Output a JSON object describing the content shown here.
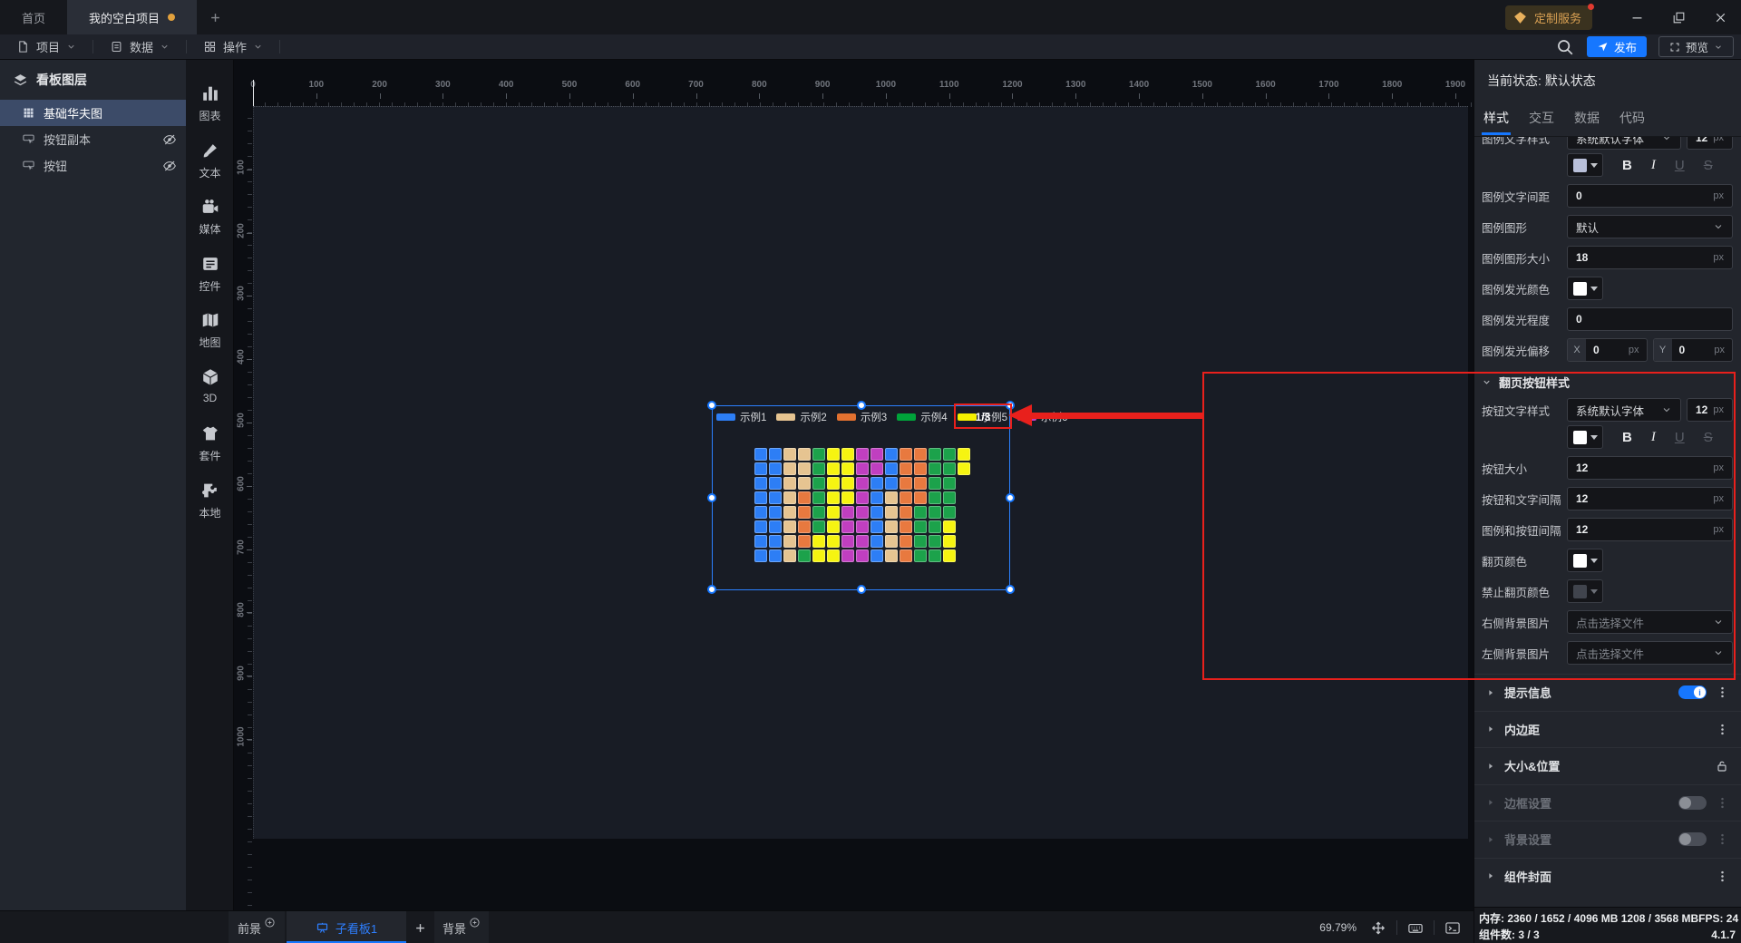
{
  "titlebar": {
    "tabs": [
      {
        "label": "首页",
        "active": false,
        "modified": false
      },
      {
        "label": "我的空白项目",
        "active": true,
        "modified": true
      }
    ],
    "badge": {
      "label": "定制服务",
      "icon": "diamond-icon",
      "notification": true
    }
  },
  "menubar": {
    "menus": [
      {
        "label": "项目",
        "icon": "file-icon"
      },
      {
        "label": "数据",
        "icon": "database-icon"
      },
      {
        "label": "操作",
        "icon": "grid-icon"
      }
    ],
    "publish_label": "发布",
    "preview_label": "预览"
  },
  "layers_panel": {
    "title": "看板图层",
    "items": [
      {
        "label": "基础华夫图",
        "icon": "waffle-icon",
        "selected": true,
        "hidden": false
      },
      {
        "label": "按钮副本",
        "icon": "button-icon",
        "selected": false,
        "hidden": true
      },
      {
        "label": "按钮",
        "icon": "button-icon",
        "selected": false,
        "hidden": true
      }
    ]
  },
  "dock": {
    "items": [
      {
        "label": "图表",
        "icon": "bar-chart-icon"
      },
      {
        "label": "文本",
        "icon": "text-brush-icon"
      },
      {
        "label": "媒体",
        "icon": "media-icon"
      },
      {
        "label": "控件",
        "icon": "widget-icon"
      },
      {
        "label": "地图",
        "icon": "map-icon"
      },
      {
        "label": "3D",
        "icon": "cube-icon"
      },
      {
        "label": "套件",
        "icon": "kit-icon"
      },
      {
        "label": "本地",
        "icon": "puzzle-icon"
      }
    ]
  },
  "canvas": {
    "h_ruler_labels": [
      "0",
      "100",
      "200",
      "300",
      "400",
      "500",
      "600",
      "700",
      "800",
      "900",
      "1000",
      "1100",
      "1200",
      "1300",
      "1400",
      "1500",
      "1600",
      "1700",
      "1800",
      "1900"
    ],
    "v_ruler_labels": [
      "100",
      "200",
      "300",
      "400",
      "500",
      "600",
      "700",
      "800",
      "900",
      "1000"
    ],
    "chart": {
      "legend": [
        {
          "label": "示例1",
          "color": "#2d7ef5"
        },
        {
          "label": "示例2",
          "color": "#e6c491"
        },
        {
          "label": "示例3",
          "color": "#e27130"
        },
        {
          "label": "示例4",
          "color": "#00a33a"
        },
        {
          "label": "示例5",
          "color": "#f4f000"
        },
        {
          "label": "示例6",
          "color": "#c03fc0"
        }
      ],
      "pagination": {
        "current_page": "1/3"
      },
      "waffle": {
        "palette": {
          "B": "#2d7ef5",
          "T": "#e6c491",
          "O": "#e8793f",
          "G": "#1ca24b",
          "Y": "#f6f411",
          "M": "#c03fc0"
        },
        "rows": [
          "BBTTGYYMMBOOGGY",
          "BBTTGYYMMBOOGGY",
          "BBTTGYYMBBOOGG",
          "BBTOGYYMBTOOGG",
          "BBTOGYMMBTOGGG",
          "BBTOGYMMBTOGGY",
          "BBTOYYMMBTOGGY",
          "BBTGYYMMBTOGGY"
        ]
      }
    }
  },
  "inspector": {
    "state_label": "当前状态: 默认状态",
    "tabs": [
      {
        "label": "样式",
        "active": true
      },
      {
        "label": "交互",
        "active": false
      },
      {
        "label": "数据",
        "active": false
      },
      {
        "label": "代码",
        "active": false
      }
    ],
    "format_buttons": [
      {
        "label": "B",
        "style": "bold",
        "disabled": false
      },
      {
        "label": "I",
        "style": "italic",
        "disabled": false
      },
      {
        "label": "U",
        "style": "underline",
        "disabled": true
      },
      {
        "label": "S",
        "style": "strike",
        "disabled": true
      }
    ],
    "style_pane": {
      "rows": [
        {
          "type": "font",
          "label": "图例文字样式",
          "font_value": "系统默认字体",
          "size_value": "12",
          "suffix": "px",
          "swatch_color": "#b9c0da",
          "clipped": true
        },
        {
          "type": "input",
          "label": "图例文字间距",
          "value": "0",
          "suffix": "px"
        },
        {
          "type": "select",
          "label": "图例图形",
          "value": "默认"
        },
        {
          "type": "input",
          "label": "图例图形大小",
          "value": "18",
          "suffix": "px"
        },
        {
          "type": "color",
          "label": "图例发光颜色",
          "swatch_color": "#ffffff"
        },
        {
          "type": "input",
          "label": "图例发光程度",
          "value": "0",
          "suffix": ""
        },
        {
          "type": "xy",
          "label": "图例发光偏移",
          "x_label": "X",
          "x_value": "0",
          "y_label": "Y",
          "y_value": "0",
          "suffix": "px"
        }
      ],
      "pager_section": {
        "title": "翻页按钮样式",
        "rows": [
          {
            "type": "font",
            "label": "按钮文字样式",
            "font_value": "系统默认字体",
            "size_value": "12",
            "suffix": "px",
            "swatch_color": "#ffffff"
          },
          {
            "type": "input",
            "label": "按钮大小",
            "value": "12",
            "suffix": "px"
          },
          {
            "type": "input",
            "label": "按钮和文字间隔",
            "value": "12",
            "suffix": "px"
          },
          {
            "type": "input",
            "label": "图例和按钮间隔",
            "value": "12",
            "suffix": "px"
          },
          {
            "type": "color",
            "label": "翻页颜色",
            "swatch_color": "#ffffff"
          },
          {
            "type": "color",
            "label": "禁止翻页颜色",
            "swatch_color": "#40444d",
            "disabled": true
          },
          {
            "type": "select",
            "label": "右侧背景图片",
            "value": "点击选择文件",
            "placeholder": true
          },
          {
            "type": "select",
            "label": "左侧背景图片",
            "value": "点击选择文件",
            "placeholder": true
          }
        ]
      },
      "accordions": [
        {
          "label": "提示信息",
          "toggle": "on",
          "menu": true,
          "disabled": false
        },
        {
          "label": "内边距",
          "toggle": null,
          "menu": true,
          "disabled": false
        },
        {
          "label": "大小&位置",
          "toggle": null,
          "menu": false,
          "lock": true,
          "disabled": false
        },
        {
          "label": "边框设置",
          "toggle": "off",
          "menu": true,
          "disabled": true
        },
        {
          "label": "背景设置",
          "toggle": "off",
          "menu": true,
          "disabled": true
        },
        {
          "label": "组件封面",
          "toggle": null,
          "menu": true,
          "disabled": false
        }
      ]
    }
  },
  "bottombar": {
    "foreground_label": "前景",
    "active_board_label": "子看板1",
    "background_label": "背景",
    "zoom_level": "69.79%"
  },
  "statusbar": {
    "memory": "内存: 2360 / 1652 / 4096 MB  1208 / 3568 MB",
    "fps": "FPS: 24",
    "components": "组件数: 3 / 3",
    "version": "4.1.7"
  }
}
